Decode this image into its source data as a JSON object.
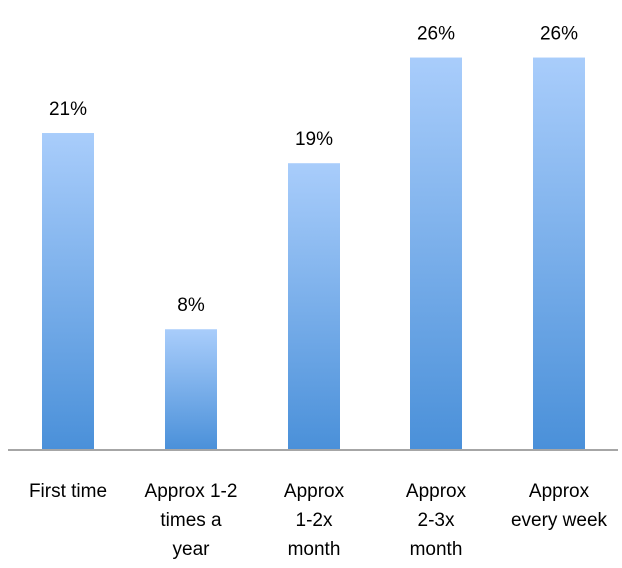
{
  "chart_data": {
    "type": "bar",
    "title": "",
    "xlabel": "",
    "ylabel": "",
    "categories": [
      [
        "First time"
      ],
      [
        "Approx 1-2",
        "times a",
        "year"
      ],
      [
        "Approx",
        "1-2x",
        "month"
      ],
      [
        "Approx",
        "2-3x",
        "month"
      ],
      [
        "Approx",
        "every week"
      ]
    ],
    "values": [
      21,
      8,
      19,
      26,
      26
    ],
    "value_labels": [
      "21%",
      "8%",
      "19%",
      "26%",
      "26%"
    ],
    "value_suffix": "%",
    "ylim": [
      0,
      26.5
    ],
    "grid": false,
    "legend": "none",
    "colors": {
      "bar_top": "#a9cdfb",
      "bar_bottom": "#4a90d9",
      "axis": "#a6a6a6",
      "text": "#000000"
    }
  }
}
